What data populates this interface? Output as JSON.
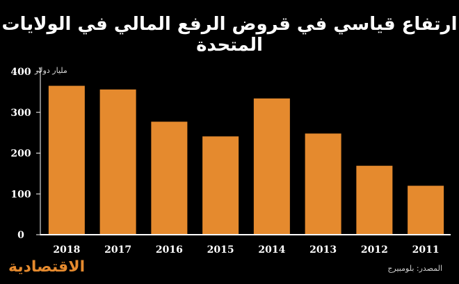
{
  "colors": {
    "bar": "#E58A2E",
    "background": "#000000",
    "axis": "#FFFFFF",
    "text": "#FFFFFF"
  },
  "title": "ارتفاع قياسي في قروض الرفع المالي في الولايات المتحدة",
  "unit_label": "مليار دولار",
  "source": "المصدر: بلومبيرج",
  "logo_text": "الاقتصادية",
  "chart_data": {
    "type": "bar",
    "categories": [
      "2018",
      "2017",
      "2016",
      "2015",
      "2014",
      "2013",
      "2012",
      "2011"
    ],
    "values": [
      365,
      356,
      277,
      241,
      334,
      248,
      169,
      120
    ],
    "title": "ارتفاع قياسي في قروض الرفع المالي في الولايات المتحدة",
    "ylabel": "مليار دولار",
    "ylim": [
      0,
      400
    ],
    "yticks": [
      "0",
      "100",
      "200",
      "300",
      "400"
    ],
    "grid": false,
    "legend": "none"
  }
}
